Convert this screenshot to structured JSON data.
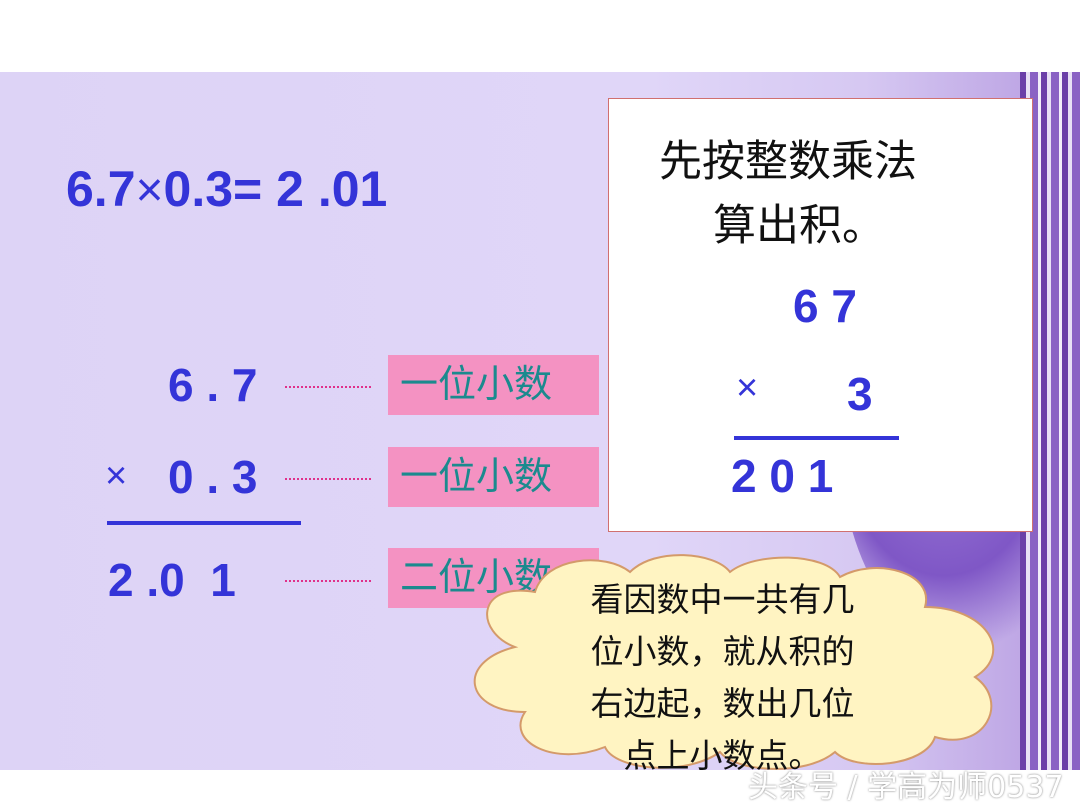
{
  "equation": {
    "left": "6.7",
    "times": "×",
    "right": "0.3=",
    "result": " 2 .01"
  },
  "vertical": {
    "row1": "6 . 7",
    "times": "×",
    "row2": "0 . 3",
    "result": "2 .0  1"
  },
  "tags": [
    "一位小数",
    "一位小数",
    "二位小数"
  ],
  "box": {
    "line1": "先按整数乘法",
    "line2": "算出积。",
    "row1": "6 7",
    "times": "×",
    "row2": "3",
    "result": "2 0 1"
  },
  "cloud": {
    "lines": [
      "看因数中一共有几",
      "位小数，就从积的",
      "右边起，数出几位",
      "点上小数点。"
    ]
  },
  "watermark": "头条号 / 学高为师0537",
  "colors": {
    "digits": "#3434d8",
    "tag_bg": "#f492c2",
    "tag_text": "#1b8a8e",
    "cloud_fill": "#fff4c2",
    "background": "#ddd3f6"
  }
}
